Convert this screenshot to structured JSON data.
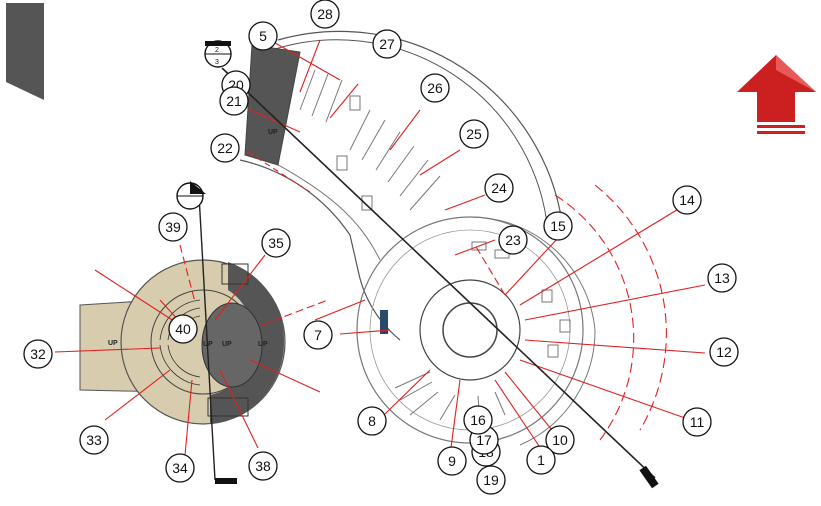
{
  "colors": {
    "background": "#ffffff",
    "section_line": "#e02020",
    "plan_line": "#555555",
    "cut_line": "#222222",
    "beige_fill": "#d7ccae",
    "dark_fill": "#555555",
    "arrow_red": "#cc1f1f"
  },
  "icons": {
    "top_left_bar": "dark-bar-icon",
    "north_arrow": "red-arrow-up-icon"
  },
  "grid_bubbles": [
    {
      "label": "5"
    },
    {
      "label": "28"
    },
    {
      "label": "27"
    },
    {
      "label": "26"
    },
    {
      "label": "25"
    },
    {
      "label": "24"
    },
    {
      "label": "23"
    },
    {
      "label": "15"
    },
    {
      "label": "14"
    },
    {
      "label": "13"
    },
    {
      "label": "12"
    },
    {
      "label": "11"
    },
    {
      "label": "10"
    },
    {
      "label": "1"
    },
    {
      "label": "19"
    },
    {
      "label": "18"
    },
    {
      "label": "17"
    },
    {
      "label": "16"
    },
    {
      "label": "9"
    },
    {
      "label": "8"
    },
    {
      "label": "7"
    },
    {
      "label": "20"
    },
    {
      "label": "21"
    },
    {
      "label": "22"
    },
    {
      "label": "39"
    },
    {
      "label": "35"
    },
    {
      "label": "40"
    },
    {
      "label": "32"
    },
    {
      "label": "33"
    },
    {
      "label": "34"
    },
    {
      "label": "38"
    }
  ],
  "section_marker": {
    "top": "2",
    "bottom": "3"
  },
  "stair_labels": {
    "up": "UP"
  }
}
